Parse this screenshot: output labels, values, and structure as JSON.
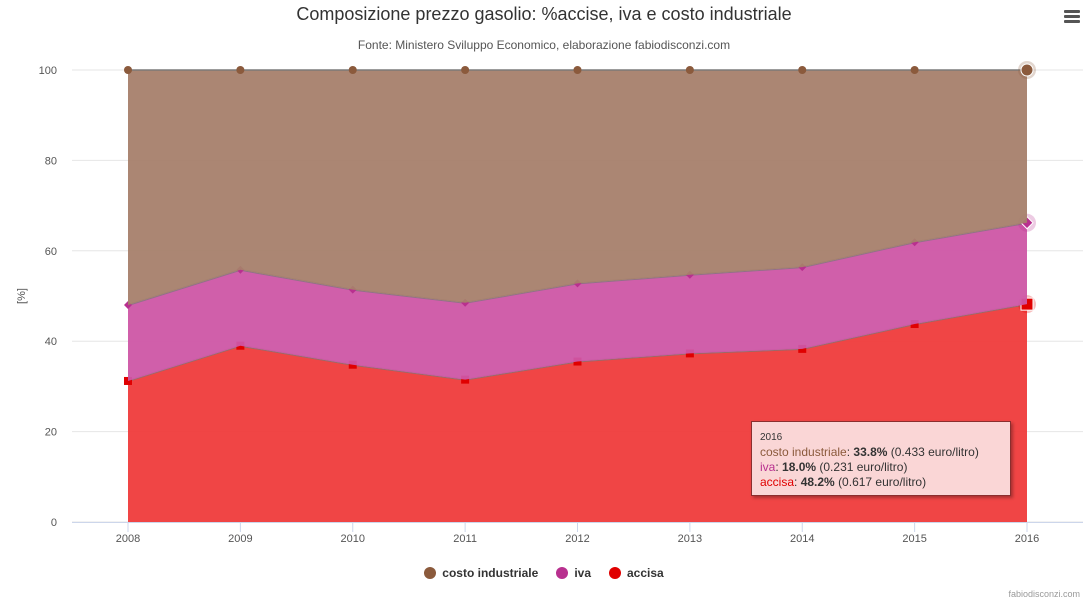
{
  "chart_data": {
    "type": "area",
    "stacking": "percent",
    "title": "Composizione prezzo gasolio: %accise, iva e costo industriale",
    "subtitle": "Fonte: Ministero Sviluppo Economico, elaborazione fabiodisconzi.com",
    "ylabel": "[%]",
    "ylim": [
      0,
      100
    ],
    "yticks": [
      0,
      20,
      40,
      60,
      80,
      100
    ],
    "categories": [
      "2008",
      "2009",
      "2010",
      "2011",
      "2012",
      "2013",
      "2014",
      "2015",
      "2016"
    ],
    "series": [
      {
        "name": "costo industriale",
        "color": "#8b5a3c",
        "fill": "#a67f6b",
        "values": [
          52.0,
          44.2,
          48.6,
          51.5,
          47.2,
          45.3,
          43.6,
          38.1,
          33.8
        ]
      },
      {
        "name": "iva",
        "color": "#b8308f",
        "fill": "#cd56a5",
        "values": [
          16.8,
          16.8,
          16.6,
          17.0,
          17.3,
          17.4,
          18.1,
          18.1,
          18.0
        ]
      },
      {
        "name": "accisa",
        "color": "#e00000",
        "fill": "#ef3b3b",
        "values": [
          31.2,
          39.0,
          34.8,
          31.5,
          35.5,
          37.3,
          38.3,
          43.8,
          48.2
        ]
      }
    ],
    "legend_position": "bottom"
  },
  "tooltip": {
    "header": "2016",
    "rows": [
      {
        "name": "costo industriale",
        "pct": "33.8%",
        "extra": "(0.433 euro/litro)",
        "color": "#8b5a3c"
      },
      {
        "name": "iva",
        "pct": "18.0%",
        "extra": "(0.231 euro/litro)",
        "color": "#b8308f"
      },
      {
        "name": "accisa",
        "pct": "48.2%",
        "extra": "(0.617 euro/litro)",
        "color": "#e00000"
      }
    ]
  },
  "credit": "fabiodisconzi.com"
}
